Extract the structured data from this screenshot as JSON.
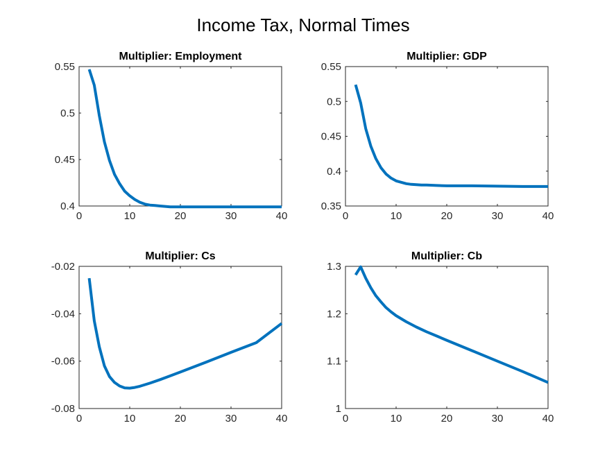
{
  "figure": {
    "title": "Income Tax, Normal Times",
    "line_color": "#0072BD"
  },
  "chart_data": [
    {
      "type": "line",
      "title": "Multiplier: Employment",
      "xlabel": "",
      "ylabel": "",
      "xlim": [
        0,
        40
      ],
      "ylim": [
        0.4,
        0.55
      ],
      "xticks": [
        0,
        10,
        20,
        30,
        40
      ],
      "yticks": [
        0.4,
        0.45,
        0.5,
        0.55
      ],
      "xtick_labels": [
        "0",
        "10",
        "20",
        "30",
        "40"
      ],
      "ytick_labels": [
        "0.4",
        "0.45",
        "0.5",
        "0.55"
      ],
      "grid": false,
      "series": [
        {
          "x": [
            2,
            3,
            4,
            5,
            6,
            7,
            8,
            9,
            10,
            11,
            12,
            13,
            14,
            15,
            16,
            18,
            20,
            25,
            30,
            35,
            40
          ],
          "y": [
            0.547,
            0.53,
            0.497,
            0.469,
            0.449,
            0.434,
            0.424,
            0.416,
            0.411,
            0.407,
            0.404,
            0.402,
            0.401,
            0.4005,
            0.4,
            0.399,
            0.399,
            0.399,
            0.399,
            0.399,
            0.399
          ]
        }
      ]
    },
    {
      "type": "line",
      "title": "Multiplier: GDP",
      "xlabel": "",
      "ylabel": "",
      "xlim": [
        0,
        40
      ],
      "ylim": [
        0.35,
        0.55
      ],
      "xticks": [
        0,
        10,
        20,
        30,
        40
      ],
      "yticks": [
        0.35,
        0.4,
        0.45,
        0.5,
        0.55
      ],
      "xtick_labels": [
        "0",
        "10",
        "20",
        "30",
        "40"
      ],
      "ytick_labels": [
        "0.35",
        "0.4",
        "0.45",
        "0.5",
        "0.55"
      ],
      "grid": false,
      "series": [
        {
          "x": [
            2,
            3,
            4,
            5,
            6,
            7,
            8,
            9,
            10,
            11,
            12,
            13,
            14,
            15,
            16,
            18,
            20,
            25,
            30,
            35,
            40
          ],
          "y": [
            0.524,
            0.498,
            0.461,
            0.436,
            0.418,
            0.405,
            0.396,
            0.39,
            0.386,
            0.384,
            0.382,
            0.381,
            0.3805,
            0.38,
            0.38,
            0.3795,
            0.379,
            0.379,
            0.3785,
            0.378,
            0.378
          ]
        }
      ]
    },
    {
      "type": "line",
      "title": "Multiplier: Cs",
      "xlabel": "",
      "ylabel": "",
      "xlim": [
        0,
        40
      ],
      "ylim": [
        -0.08,
        -0.02
      ],
      "xticks": [
        0,
        10,
        20,
        30,
        40
      ],
      "yticks": [
        -0.08,
        -0.06,
        -0.04,
        -0.02
      ],
      "xtick_labels": [
        "0",
        "10",
        "20",
        "30",
        "40"
      ],
      "ytick_labels": [
        "-0.08",
        "-0.06",
        "-0.04",
        "-0.02"
      ],
      "grid": false,
      "series": [
        {
          "x": [
            2,
            3,
            4,
            5,
            6,
            7,
            8,
            9,
            10,
            11,
            12,
            14,
            16,
            18,
            20,
            25,
            30,
            35,
            40
          ],
          "y": [
            -0.025,
            -0.043,
            -0.054,
            -0.062,
            -0.0665,
            -0.069,
            -0.0705,
            -0.0713,
            -0.0714,
            -0.0711,
            -0.0706,
            -0.0693,
            -0.0678,
            -0.0662,
            -0.0646,
            -0.0605,
            -0.0563,
            -0.0522,
            -0.0441
          ]
        }
      ]
    },
    {
      "type": "line",
      "title": "Multiplier: Cb",
      "xlabel": "",
      "ylabel": "",
      "xlim": [
        0,
        40
      ],
      "ylim": [
        1.0,
        1.3
      ],
      "xticks": [
        0,
        10,
        20,
        30,
        40
      ],
      "yticks": [
        1,
        1.1,
        1.2,
        1.3
      ],
      "xtick_labels": [
        "0",
        "10",
        "20",
        "30",
        "40"
      ],
      "ytick_labels": [
        "1",
        "1.1",
        "1.2",
        "1.3"
      ],
      "grid": false,
      "series": [
        {
          "x": [
            2,
            3,
            4,
            5,
            6,
            7,
            8,
            9,
            10,
            12,
            14,
            16,
            18,
            20,
            25,
            30,
            35,
            40
          ],
          "y": [
            1.282,
            1.299,
            1.275,
            1.255,
            1.238,
            1.225,
            1.213,
            1.204,
            1.196,
            1.183,
            1.172,
            1.162,
            1.153,
            1.144,
            1.122,
            1.1,
            1.078,
            1.055
          ]
        }
      ]
    }
  ]
}
